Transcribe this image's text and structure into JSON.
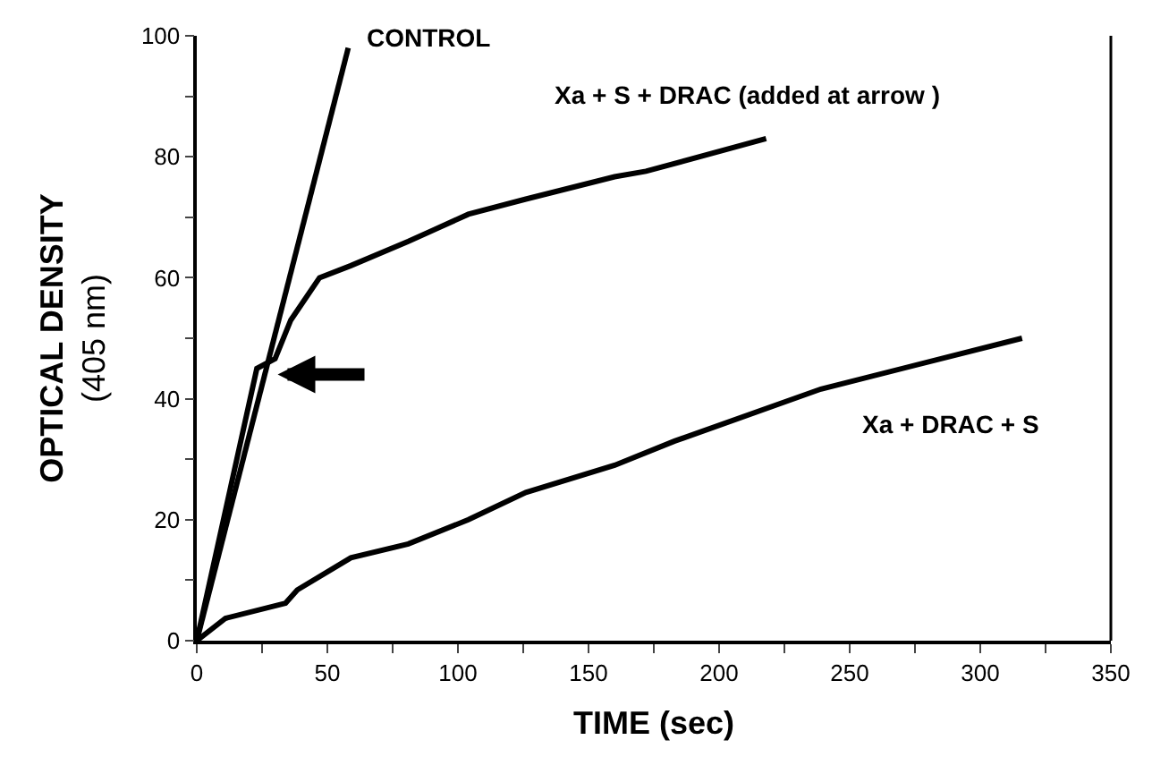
{
  "chart_data": {
    "type": "line",
    "xlabel": "TIME (sec)",
    "ylabel": "OPTICAL DENSITY\n(405 nm)",
    "xlim": [
      0,
      350
    ],
    "ylim": [
      0,
      100
    ],
    "xticks": [
      0,
      {
        "value": 25,
        "label": null
      },
      50,
      {
        "value": 75,
        "label": null
      },
      100,
      {
        "value": 125,
        "label": null
      },
      150,
      {
        "value": 175,
        "label": null
      },
      200,
      {
        "value": 225,
        "label": null
      },
      250,
      {
        "value": 275,
        "label": null
      },
      300,
      {
        "value": 325,
        "label": null
      },
      350
    ],
    "yticks": [
      0,
      {
        "value": 10,
        "label": null
      },
      20,
      {
        "value": 30,
        "label": null
      },
      40,
      {
        "value": 50,
        "label": null
      },
      60,
      {
        "value": 70,
        "label": null
      },
      80,
      {
        "value": 90,
        "label": null
      },
      100
    ],
    "marker": "none",
    "line_style": "solid",
    "series": [
      {
        "name": "CONTROL",
        "color": "#000000",
        "x": [
          0,
          58
        ],
        "values": [
          0,
          98
        ]
      },
      {
        "name": "Xa + S + DRAC (added at arrow )",
        "color": "#000000",
        "x": [
          0,
          23,
          30,
          36,
          47,
          59,
          81,
          104,
          126,
          160,
          172,
          218
        ],
        "values": [
          0,
          45,
          46.6,
          53,
          60,
          62,
          66,
          70.5,
          73,
          76.7,
          77.6,
          83
        ]
      },
      {
        "name": "Xa + DRAC + S",
        "color": "#000000",
        "x": [
          0,
          11,
          34,
          38.5,
          59,
          81,
          104,
          126,
          160,
          183,
          239,
          316
        ],
        "values": [
          0,
          3.7,
          6.2,
          8.4,
          13.7,
          16,
          20,
          24.5,
          29,
          33,
          41.6,
          50
        ]
      }
    ]
  }
}
